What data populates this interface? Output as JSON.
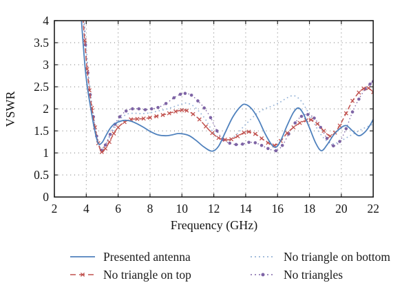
{
  "chart_data": {
    "type": "line",
    "title": "",
    "xlabel": "Frequency (GHz)",
    "ylabel": "VSWR",
    "xlim": [
      2,
      22
    ],
    "ylim": [
      0,
      4
    ],
    "x_ticks": [
      "2",
      "4",
      "6",
      "8",
      "10",
      "12",
      "14",
      "16",
      "18",
      "20",
      "22"
    ],
    "y_ticks": [
      "0",
      "0.5",
      "1",
      "1.5",
      "2",
      "2.5",
      "3",
      "3.5",
      "4"
    ],
    "grid": "dotted",
    "legend_position": "below-chart, two columns",
    "series": [
      {
        "name": "Presented antenna",
        "color": "#4f81bd",
        "line_style": "solid",
        "marker": "none",
        "points": [
          [
            3.62,
            4.4
          ],
          [
            3.8,
            3.5
          ],
          [
            3.95,
            2.85
          ],
          [
            4.1,
            2.42
          ],
          [
            4.25,
            2.08
          ],
          [
            4.45,
            1.66
          ],
          [
            4.6,
            1.4
          ],
          [
            4.77,
            1.2
          ],
          [
            5.0,
            1.24
          ],
          [
            5.2,
            1.37
          ],
          [
            5.45,
            1.53
          ],
          [
            5.7,
            1.64
          ],
          [
            6.0,
            1.7
          ],
          [
            6.4,
            1.74
          ],
          [
            6.8,
            1.72
          ],
          [
            7.2,
            1.66
          ],
          [
            7.6,
            1.58
          ],
          [
            8.0,
            1.49
          ],
          [
            8.5,
            1.41
          ],
          [
            9.0,
            1.39
          ],
          [
            9.4,
            1.41
          ],
          [
            9.8,
            1.44
          ],
          [
            10.4,
            1.4
          ],
          [
            10.9,
            1.28
          ],
          [
            11.4,
            1.13
          ],
          [
            11.9,
            1.04
          ],
          [
            12.3,
            1.15
          ],
          [
            12.7,
            1.45
          ],
          [
            13.2,
            1.82
          ],
          [
            13.7,
            2.06
          ],
          [
            14.0,
            2.1
          ],
          [
            14.4,
            1.99
          ],
          [
            14.8,
            1.76
          ],
          [
            15.2,
            1.45
          ],
          [
            15.6,
            1.2
          ],
          [
            15.9,
            1.13
          ],
          [
            16.2,
            1.28
          ],
          [
            16.6,
            1.62
          ],
          [
            17.0,
            1.92
          ],
          [
            17.3,
            2.02
          ],
          [
            17.6,
            1.9
          ],
          [
            18.0,
            1.57
          ],
          [
            18.4,
            1.22
          ],
          [
            18.75,
            1.05
          ],
          [
            19.1,
            1.18
          ],
          [
            19.5,
            1.4
          ],
          [
            19.9,
            1.55
          ],
          [
            20.3,
            1.62
          ],
          [
            20.7,
            1.5
          ],
          [
            21.1,
            1.39
          ],
          [
            21.5,
            1.48
          ],
          [
            21.8,
            1.63
          ],
          [
            22.0,
            1.76
          ]
        ]
      },
      {
        "name": "No triangle on top",
        "color": "#c0504d",
        "line_style": "dashed",
        "marker": "x",
        "points": [
          [
            3.72,
            4.4
          ],
          [
            3.9,
            3.55
          ],
          [
            4.05,
            2.9
          ],
          [
            4.2,
            2.42
          ],
          [
            4.35,
            2.02
          ],
          [
            4.55,
            1.58
          ],
          [
            4.75,
            1.22
          ],
          [
            4.97,
            1.02
          ],
          [
            5.2,
            1.1
          ],
          [
            5.45,
            1.25
          ],
          [
            5.73,
            1.44
          ],
          [
            6.0,
            1.58
          ],
          [
            6.4,
            1.7
          ],
          [
            6.8,
            1.76
          ],
          [
            7.2,
            1.77
          ],
          [
            7.6,
            1.78
          ],
          [
            8.0,
            1.8
          ],
          [
            8.4,
            1.83
          ],
          [
            8.8,
            1.86
          ],
          [
            9.2,
            1.9
          ],
          [
            9.6,
            1.94
          ],
          [
            10.0,
            1.97
          ],
          [
            10.3,
            1.96
          ],
          [
            10.7,
            1.88
          ],
          [
            11.1,
            1.76
          ],
          [
            11.5,
            1.6
          ],
          [
            11.9,
            1.45
          ],
          [
            12.3,
            1.34
          ],
          [
            12.7,
            1.3
          ],
          [
            13.1,
            1.31
          ],
          [
            13.5,
            1.38
          ],
          [
            13.9,
            1.46
          ],
          [
            14.2,
            1.48
          ],
          [
            14.6,
            1.43
          ],
          [
            15.0,
            1.33
          ],
          [
            15.4,
            1.23
          ],
          [
            15.8,
            1.17
          ],
          [
            16.2,
            1.27
          ],
          [
            16.6,
            1.45
          ],
          [
            17.0,
            1.58
          ],
          [
            17.4,
            1.68
          ],
          [
            17.8,
            1.74
          ],
          [
            18.1,
            1.75
          ],
          [
            18.5,
            1.66
          ],
          [
            18.9,
            1.5
          ],
          [
            19.3,
            1.38
          ],
          [
            19.6,
            1.46
          ],
          [
            19.9,
            1.62
          ],
          [
            20.3,
            1.9
          ],
          [
            20.7,
            2.18
          ],
          [
            21.1,
            2.37
          ],
          [
            21.4,
            2.46
          ],
          [
            21.7,
            2.47
          ],
          [
            22.0,
            2.38
          ]
        ]
      },
      {
        "name": "No triangle on bottom",
        "color": "#95b3d7",
        "line_style": "dotted",
        "marker": "none",
        "points": [
          [
            3.8,
            4.4
          ],
          [
            4.0,
            3.4
          ],
          [
            4.15,
            2.75
          ],
          [
            4.3,
            2.25
          ],
          [
            4.5,
            1.75
          ],
          [
            4.7,
            1.35
          ],
          [
            4.92,
            1.1
          ],
          [
            5.15,
            1.17
          ],
          [
            5.45,
            1.35
          ],
          [
            5.75,
            1.55
          ],
          [
            6.0,
            1.72
          ],
          [
            6.5,
            1.87
          ],
          [
            7.0,
            1.9
          ],
          [
            7.5,
            1.89
          ],
          [
            8.0,
            1.91
          ],
          [
            8.5,
            1.95
          ],
          [
            9.0,
            1.99
          ],
          [
            9.5,
            2.05
          ],
          [
            10.0,
            2.11
          ],
          [
            10.3,
            2.13
          ],
          [
            10.7,
            2.07
          ],
          [
            11.1,
            1.93
          ],
          [
            11.5,
            1.75
          ],
          [
            11.9,
            1.5
          ],
          [
            12.3,
            1.34
          ],
          [
            12.6,
            1.29
          ],
          [
            13.0,
            1.31
          ],
          [
            13.4,
            1.41
          ],
          [
            13.8,
            1.57
          ],
          [
            14.2,
            1.72
          ],
          [
            14.7,
            1.89
          ],
          [
            15.2,
            2.0
          ],
          [
            15.7,
            2.07
          ],
          [
            16.2,
            2.16
          ],
          [
            16.6,
            2.25
          ],
          [
            17.0,
            2.3
          ],
          [
            17.4,
            2.21
          ],
          [
            17.8,
            2.0
          ],
          [
            18.2,
            1.74
          ],
          [
            18.6,
            1.48
          ],
          [
            19.0,
            1.3
          ],
          [
            19.4,
            1.21
          ],
          [
            19.8,
            1.24
          ],
          [
            20.3,
            1.34
          ],
          [
            20.8,
            1.44
          ],
          [
            21.3,
            1.54
          ],
          [
            21.8,
            1.62
          ],
          [
            22.0,
            1.65
          ]
        ]
      },
      {
        "name": "No triangles",
        "color": "#7e64a5",
        "line_style": "dotted",
        "marker": "circle",
        "points": [
          [
            3.77,
            4.4
          ],
          [
            3.95,
            3.45
          ],
          [
            4.1,
            2.82
          ],
          [
            4.25,
            2.32
          ],
          [
            4.45,
            1.82
          ],
          [
            4.65,
            1.38
          ],
          [
            4.95,
            1.06
          ],
          [
            5.2,
            1.18
          ],
          [
            5.5,
            1.42
          ],
          [
            5.8,
            1.65
          ],
          [
            6.1,
            1.82
          ],
          [
            6.5,
            1.95
          ],
          [
            6.9,
            2.0
          ],
          [
            7.3,
            2.0
          ],
          [
            7.7,
            1.98
          ],
          [
            8.1,
            2.0
          ],
          [
            8.5,
            2.03
          ],
          [
            9.0,
            2.12
          ],
          [
            9.5,
            2.25
          ],
          [
            9.9,
            2.33
          ],
          [
            10.2,
            2.35
          ],
          [
            10.6,
            2.31
          ],
          [
            11.0,
            2.18
          ],
          [
            11.4,
            2.02
          ],
          [
            11.8,
            1.8
          ],
          [
            12.2,
            1.5
          ],
          [
            12.6,
            1.3
          ],
          [
            13.0,
            1.22
          ],
          [
            13.4,
            1.19
          ],
          [
            13.8,
            1.2
          ],
          [
            14.2,
            1.24
          ],
          [
            14.6,
            1.23
          ],
          [
            15.0,
            1.17
          ],
          [
            15.4,
            1.1
          ],
          [
            15.9,
            1.05
          ],
          [
            16.3,
            1.17
          ],
          [
            16.7,
            1.43
          ],
          [
            17.1,
            1.68
          ],
          [
            17.5,
            1.83
          ],
          [
            17.9,
            1.87
          ],
          [
            18.3,
            1.79
          ],
          [
            18.7,
            1.58
          ],
          [
            19.1,
            1.33
          ],
          [
            19.5,
            1.16
          ],
          [
            19.9,
            1.26
          ],
          [
            20.3,
            1.55
          ],
          [
            20.7,
            1.93
          ],
          [
            21.1,
            2.22
          ],
          [
            21.5,
            2.45
          ],
          [
            21.8,
            2.56
          ],
          [
            22.0,
            2.62
          ]
        ]
      }
    ]
  }
}
